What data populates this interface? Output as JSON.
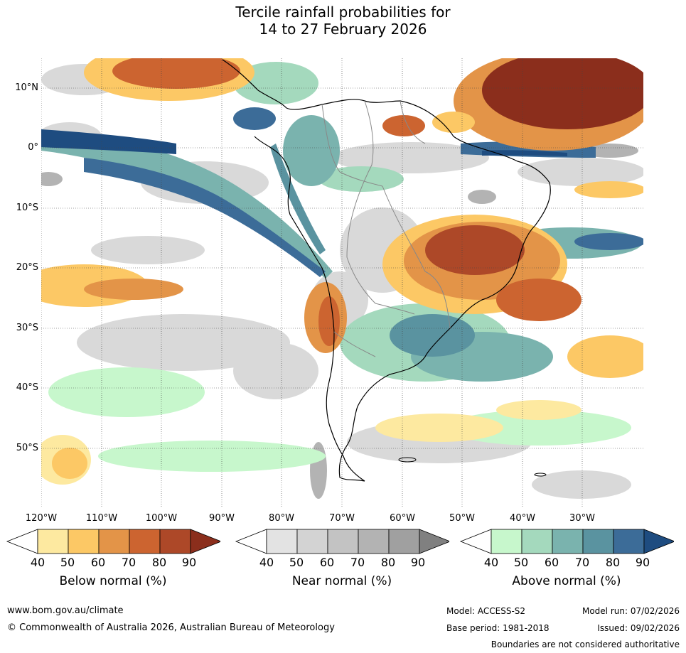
{
  "title": {
    "line1": "Tercile rainfall probabilities for",
    "line2": "14 to 27 February 2026"
  },
  "lat_labels": [
    "10°N",
    "0°",
    "10°S",
    "20°S",
    "30°S",
    "40°S",
    "50°S"
  ],
  "lon_labels": [
    "120°W",
    "110°W",
    "100°W",
    "90°W",
    "80°W",
    "70°W",
    "60°W",
    "50°W",
    "40°W",
    "30°W"
  ],
  "colorbars": [
    {
      "title": "Below normal (%)",
      "ticks": [
        "40",
        "50",
        "60",
        "70",
        "80",
        "90"
      ],
      "colors": [
        "#ffffff",
        "#fde9a0",
        "#fcc865",
        "#e39448",
        "#cc6430",
        "#ad4828",
        "#8b2e1c"
      ]
    },
    {
      "title": "Near normal (%)",
      "ticks": [
        "40",
        "50",
        "60",
        "70",
        "80",
        "90"
      ],
      "colors": [
        "#ffffff",
        "#e3e3e3",
        "#d3d3d3",
        "#c3c3c3",
        "#b3b3b3",
        "#a0a0a0",
        "#808080"
      ]
    },
    {
      "title": "Above normal (%)",
      "ticks": [
        "40",
        "50",
        "60",
        "70",
        "80",
        "90"
      ],
      "colors": [
        "#ffffff",
        "#c7f7cc",
        "#a4d9bd",
        "#7ab3ae",
        "#5a93a0",
        "#3c6c98",
        "#1e4c80"
      ]
    }
  ],
  "footer": {
    "website": "www.bom.gov.au/climate",
    "copyright": "© Commonwealth of Australia 2026, Australian Bureau of Meteorology",
    "model": "Model: ACCESS-S2",
    "base_period": "Base period: 1981-2018",
    "model_run": "Model run: 07/02/2026",
    "issued": "Issued: 09/02/2026",
    "disclaimer": "Boundaries are not considered authoritative"
  }
}
